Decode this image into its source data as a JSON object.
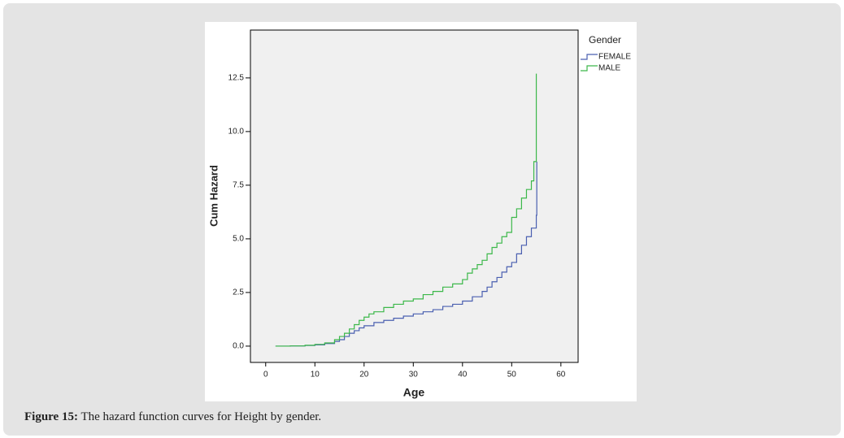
{
  "chart_data": {
    "type": "step",
    "xlabel": "Age",
    "ylabel": "Cum Hazard",
    "legend_title": "Gender",
    "legend": "upper right outside",
    "xlim": [
      -3.1,
      63.5
    ],
    "ylim": [
      -0.76,
      14.73
    ],
    "xticks": [
      0,
      10,
      20,
      30,
      40,
      50,
      60
    ],
    "yticks": [
      {
        "value": 0,
        "label": "0.0"
      },
      2.5,
      {
        "value": 5,
        "label": "5.0"
      },
      7.5,
      {
        "value": 10,
        "label": "10.0"
      },
      12.5
    ],
    "series": [
      {
        "name": "FEMALE",
        "color": "#4a5fb0",
        "x": [
          2,
          5,
          8,
          10,
          12,
          14,
          15,
          16,
          17,
          18,
          19,
          20,
          22,
          24,
          26,
          28,
          30,
          32,
          34,
          36,
          38,
          40,
          42,
          44,
          45,
          46,
          47,
          48,
          49,
          50,
          51,
          52,
          53,
          54,
          55,
          55.1
        ],
        "values": [
          0,
          0.01,
          0.03,
          0.06,
          0.12,
          0.22,
          0.3,
          0.45,
          0.6,
          0.72,
          0.85,
          0.95,
          1.1,
          1.2,
          1.3,
          1.4,
          1.5,
          1.6,
          1.7,
          1.85,
          1.95,
          2.1,
          2.3,
          2.55,
          2.75,
          3.0,
          3.2,
          3.45,
          3.7,
          3.9,
          4.3,
          4.7,
          5.1,
          5.5,
          6.1,
          8.6
        ]
      },
      {
        "name": "MALE",
        "color": "#3cb84a",
        "x": [
          2,
          5,
          8,
          10,
          12,
          14,
          15,
          16,
          17,
          18,
          19,
          20,
          21,
          22,
          24,
          26,
          28,
          30,
          32,
          34,
          36,
          38,
          40,
          41,
          42,
          43,
          44,
          45,
          46,
          47,
          48,
          49,
          50,
          51,
          52,
          53,
          54,
          54.5,
          55
        ],
        "values": [
          0,
          0.01,
          0.04,
          0.08,
          0.15,
          0.3,
          0.45,
          0.6,
          0.8,
          1.0,
          1.2,
          1.35,
          1.5,
          1.6,
          1.8,
          1.95,
          2.1,
          2.2,
          2.4,
          2.55,
          2.75,
          2.9,
          3.1,
          3.4,
          3.6,
          3.8,
          4.0,
          4.3,
          4.6,
          4.8,
          5.1,
          5.3,
          6.0,
          6.4,
          6.9,
          7.3,
          7.7,
          8.6,
          12.7
        ]
      }
    ]
  },
  "caption": {
    "label": "Figure 15:",
    "text": "The hazard function curves for Height by gender."
  }
}
